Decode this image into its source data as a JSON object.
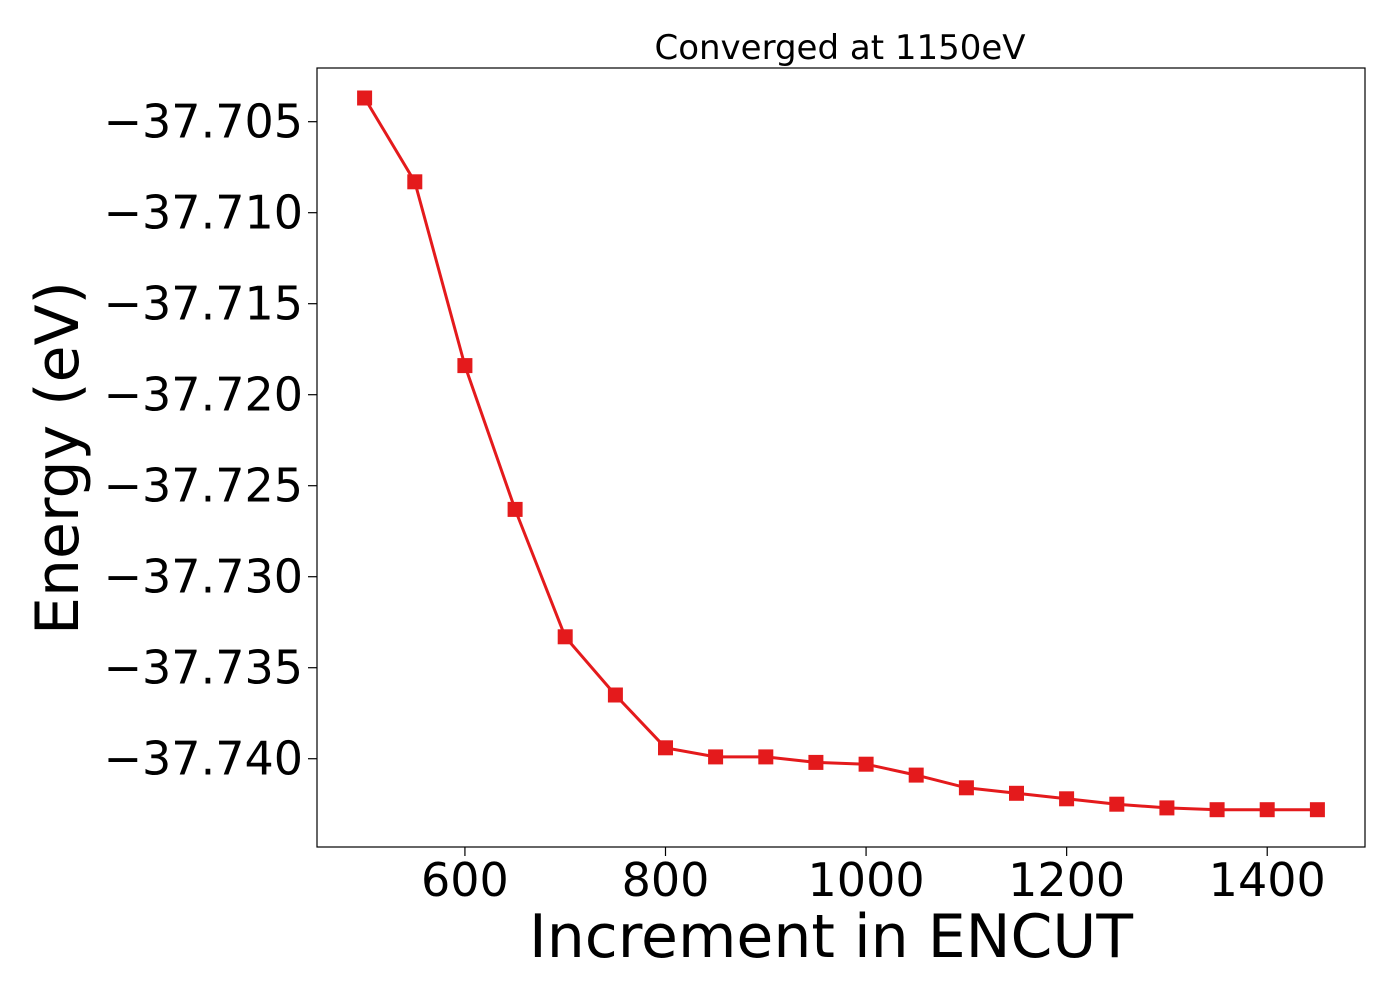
{
  "chart_data": {
    "type": "line",
    "title": "Converged at 1150eV",
    "xlabel": "Increment in ENCUT",
    "ylabel": "Energy (eV)",
    "xlim": [
      452.5,
      1497.5
    ],
    "ylim": [
      -37.74485,
      -37.70205
    ],
    "xticks": [
      600,
      800,
      1000,
      1200,
      1400
    ],
    "xtick_labels": [
      "600",
      "800",
      "1000",
      "1200",
      "1400"
    ],
    "yticks": [
      -37.705,
      -37.71,
      -37.715,
      -37.72,
      -37.725,
      -37.73,
      -37.735,
      -37.74
    ],
    "ytick_labels": [
      "−37.705",
      "−37.710",
      "−37.715",
      "−37.720",
      "−37.725",
      "−37.730",
      "−37.735",
      "−37.740"
    ],
    "grid": false,
    "legend": "none",
    "series": [
      {
        "color": "#e41a1c",
        "marker": "square",
        "x": [
          500,
          550,
          600,
          650,
          700,
          750,
          800,
          850,
          900,
          950,
          1000,
          1050,
          1100,
          1150,
          1200,
          1250,
          1300,
          1350,
          1400,
          1450
        ],
        "y": [
          -37.7037,
          -37.7083,
          -37.7184,
          -37.7263,
          -37.7333,
          -37.7365,
          -37.7394,
          -37.7399,
          -37.7399,
          -37.7402,
          -37.7403,
          -37.7409,
          -37.7416,
          -37.7419,
          -37.7422,
          -37.7425,
          -37.7427,
          -37.7428,
          -37.7428,
          -37.7428
        ]
      }
    ]
  }
}
